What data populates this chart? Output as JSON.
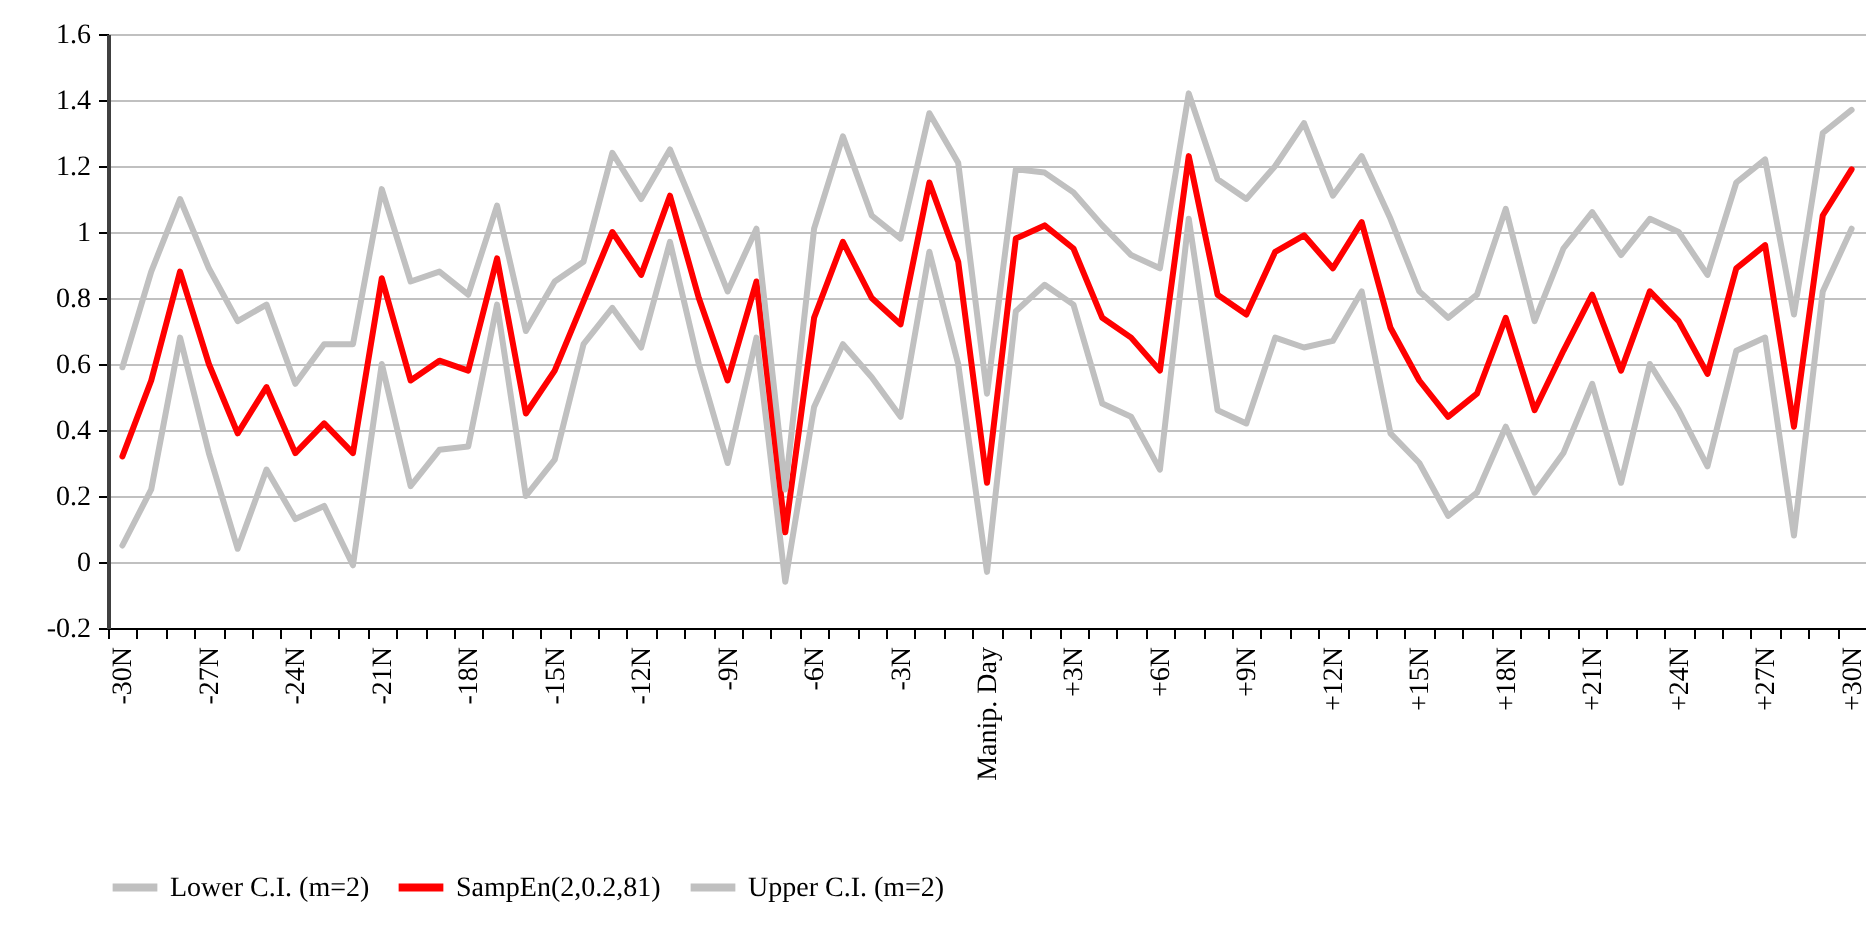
{
  "chart_data": {
    "type": "line",
    "categories": [
      "-30N",
      null,
      null,
      "-27N",
      null,
      null,
      "-24N",
      null,
      null,
      "-21N",
      null,
      null,
      "-18N",
      null,
      null,
      "-15N",
      null,
      null,
      "-12N",
      null,
      null,
      "-9N",
      null,
      null,
      "-6N",
      null,
      null,
      "-3N",
      null,
      null,
      "Manip. Day",
      null,
      null,
      "+3N",
      null,
      null,
      "+6N",
      null,
      null,
      "+9N",
      null,
      null,
      "+12N",
      null,
      null,
      "+15N",
      null,
      null,
      "+18N",
      null,
      null,
      "+21N",
      null,
      null,
      "+24N",
      null,
      null,
      "+27N",
      null,
      null,
      "+30N"
    ],
    "series": [
      {
        "name": "Lower C.I. (m=2)",
        "color": "#c0c0c0",
        "values": [
          0.05,
          0.22,
          0.68,
          0.33,
          0.04,
          0.28,
          0.13,
          0.17,
          -0.01,
          0.6,
          0.23,
          0.34,
          0.35,
          0.78,
          0.2,
          0.31,
          0.66,
          0.77,
          0.65,
          0.97,
          0.6,
          0.3,
          0.68,
          -0.06,
          0.47,
          0.66,
          0.56,
          0.44,
          0.94,
          0.6,
          -0.03,
          0.76,
          0.84,
          0.78,
          0.48,
          0.44,
          0.28,
          1.04,
          0.46,
          0.42,
          0.68,
          0.65,
          0.67,
          0.82,
          0.39,
          0.3,
          0.14,
          0.21,
          0.41,
          0.21,
          0.33,
          0.54,
          0.24,
          0.6,
          0.46,
          0.29,
          0.64,
          0.68,
          0.08,
          0.82,
          1.01
        ]
      },
      {
        "name": "SampEn(2,0.2,81)",
        "color": "#ff0000",
        "values": [
          0.32,
          0.55,
          0.88,
          0.6,
          0.39,
          0.53,
          0.33,
          0.42,
          0.33,
          0.86,
          0.55,
          0.61,
          0.58,
          0.92,
          0.45,
          0.58,
          0.79,
          1.0,
          0.87,
          1.11,
          0.8,
          0.55,
          0.85,
          0.09,
          0.74,
          0.97,
          0.8,
          0.72,
          1.15,
          0.91,
          0.24,
          0.98,
          1.02,
          0.95,
          0.74,
          0.68,
          0.58,
          1.23,
          0.81,
          0.75,
          0.94,
          0.99,
          0.89,
          1.03,
          0.71,
          0.55,
          0.44,
          0.51,
          0.74,
          0.46,
          0.64,
          0.81,
          0.58,
          0.82,
          0.73,
          0.57,
          0.89,
          0.96,
          0.41,
          1.05,
          1.19
        ]
      },
      {
        "name": "Upper C.I. (m=2)",
        "color": "#c0c0c0",
        "values": [
          0.59,
          0.88,
          1.1,
          0.89,
          0.73,
          0.78,
          0.54,
          0.66,
          0.66,
          1.13,
          0.85,
          0.88,
          0.81,
          1.08,
          0.7,
          0.85,
          0.91,
          1.24,
          1.1,
          1.25,
          1.04,
          0.82,
          1.01,
          0.22,
          1.01,
          1.29,
          1.05,
          0.98,
          1.36,
          1.21,
          0.51,
          1.19,
          1.18,
          1.12,
          1.02,
          0.93,
          0.89,
          1.42,
          1.16,
          1.1,
          1.2,
          1.33,
          1.11,
          1.23,
          1.04,
          0.82,
          0.74,
          0.81,
          1.07,
          0.73,
          0.95,
          1.06,
          0.93,
          1.04,
          1.0,
          0.87,
          1.15,
          1.22,
          0.75,
          1.3,
          1.37
        ]
      }
    ],
    "ylim": [
      -0.2,
      1.6
    ],
    "yticks": [
      -0.2,
      0,
      0.2,
      0.4,
      0.6,
      0.8,
      1,
      1.2,
      1.4,
      1.6
    ],
    "grid": "y",
    "legend": "bottom"
  }
}
